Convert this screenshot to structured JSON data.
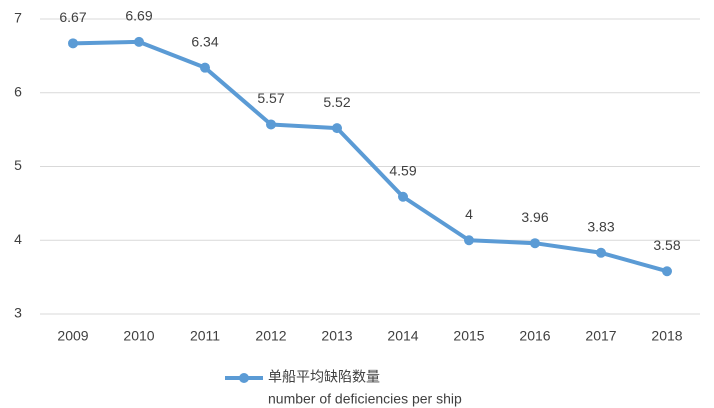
{
  "chart_data": {
    "type": "line",
    "categories": [
      "2009",
      "2010",
      "2011",
      "2012",
      "2013",
      "2014",
      "2015",
      "2016",
      "2017",
      "2018"
    ],
    "series": [
      {
        "name": "单船平均缺陷数量",
        "color": "#5b9bd5",
        "values": [
          6.67,
          6.69,
          6.34,
          5.57,
          5.52,
          4.59,
          4,
          3.96,
          3.83,
          3.58
        ]
      }
    ],
    "legend_note": "number of deficiencies per ship",
    "ylim": [
      3,
      7
    ],
    "yticks": [
      3,
      4,
      5,
      6,
      7
    ],
    "grid": true,
    "legend": "bottom"
  }
}
